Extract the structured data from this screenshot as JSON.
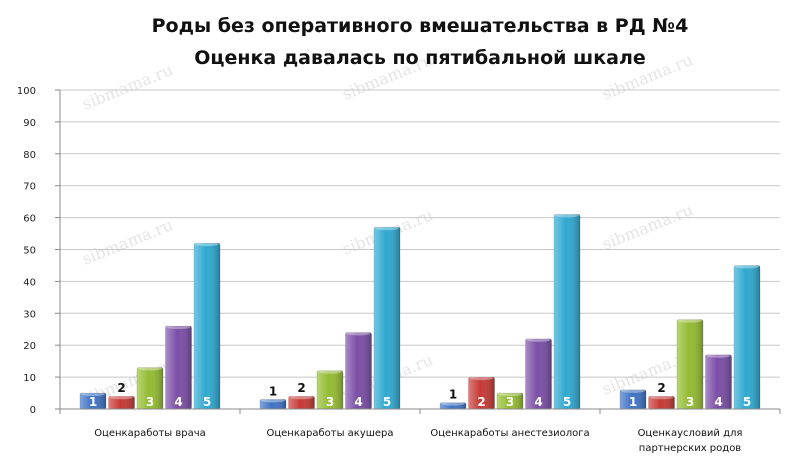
{
  "chart_data": {
    "type": "bar",
    "title": "Роды без оперативного вмешательства в РД №4",
    "subtitle": "Оценка давалась по пятибальной шкале",
    "categories": [
      [
        "Оценкаработы врача"
      ],
      [
        "Оценкаработы акушера"
      ],
      [
        "Оценкаработы анестезиолога"
      ],
      [
        "Оценкаусловий для",
        "партнерских родов"
      ]
    ],
    "series": [
      {
        "name": "1",
        "color": "#3f73c4",
        "values": [
          5,
          3,
          2,
          6
        ]
      },
      {
        "name": "2",
        "color": "#c63a36",
        "values": [
          4,
          4,
          10,
          4
        ]
      },
      {
        "name": "3",
        "color": "#93bb32",
        "values": [
          13,
          12,
          5,
          28
        ]
      },
      {
        "name": "4",
        "color": "#7b4ea6",
        "values": [
          26,
          24,
          22,
          17
        ]
      },
      {
        "name": "5",
        "color": "#2fa8cf",
        "values": [
          52,
          57,
          61,
          45
        ]
      }
    ],
    "ylim": [
      0,
      100
    ],
    "yticks": [
      0,
      10,
      20,
      30,
      40,
      50,
      60,
      70,
      80,
      90,
      100
    ],
    "grid": true,
    "legend": "none",
    "watermark": "sibmama.ru"
  }
}
